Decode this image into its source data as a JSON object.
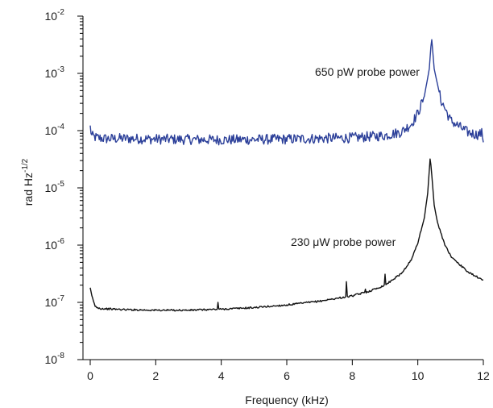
{
  "chart_data": {
    "type": "line",
    "xlabel": "Frequency (kHz)",
    "ylabel": {
      "base": "rad Hz",
      "exp": "-1/2"
    },
    "xlim": [
      0,
      12
    ],
    "ylim": [
      1e-08,
      0.01
    ],
    "yscale": "log",
    "grid": false,
    "x_ticks": [
      0,
      2,
      4,
      6,
      8,
      10,
      12
    ],
    "x_tick_labels": [
      "0",
      "2",
      "4",
      "6",
      "8",
      "10",
      "12"
    ],
    "y_ticks": [
      {
        "value": 1e-08,
        "base": "10",
        "exp": "-8"
      },
      {
        "value": 1e-07,
        "base": "10",
        "exp": "-7"
      },
      {
        "value": 1e-06,
        "base": "10",
        "exp": "-6"
      },
      {
        "value": 1e-05,
        "base": "10",
        "exp": "-5"
      },
      {
        "value": 0.0001,
        "base": "10",
        "exp": "-4"
      },
      {
        "value": 0.001,
        "base": "10",
        "exp": "-3"
      },
      {
        "value": 0.01,
        "base": "10",
        "exp": "-2"
      }
    ],
    "series": [
      {
        "name": "650 pW probe power",
        "color": "#2b3f99",
        "floor": 7.2e-05,
        "peak": {
          "x": 10.42,
          "y": 0.0042
        },
        "spikes": [],
        "x": [
          0.0,
          0.05,
          0.2,
          0.5,
          1.0,
          2.0,
          3.0,
          4.0,
          5.0,
          6.0,
          7.0,
          8.0,
          9.0,
          9.5,
          9.8,
          10.0,
          10.2,
          10.35,
          10.42,
          10.5,
          10.7,
          11.0,
          11.5,
          11.8,
          11.95,
          12.0
        ],
        "values": [
          0.000115,
          8e-05,
          7.5e-05,
          7.2e-05,
          7.3e-05,
          7.1e-05,
          7e-05,
          6.9e-05,
          7e-05,
          7.1e-05,
          7.3e-05,
          7.5e-05,
          8.2e-05,
          9.5e-05,
          0.00013,
          0.0002,
          0.0004,
          0.0012,
          0.0042,
          0.0012,
          0.00035,
          0.00015,
          9.5e-05,
          8.5e-05,
          9e-05,
          7e-05
        ]
      },
      {
        "name": "230 μW probe power",
        "color": "#111111",
        "floor": 7.2e-08,
        "peak": {
          "x": 10.38,
          "y": 3.5e-05
        },
        "spikes": [
          {
            "x": 3.9,
            "y": 1e-07
          },
          {
            "x": 7.82,
            "y": 2.3e-07
          },
          {
            "x": 8.4,
            "y": 1.7e-07
          },
          {
            "x": 9.0,
            "y": 3.1e-07
          },
          {
            "x": 11.8,
            "y": 2.9e-07
          }
        ],
        "x": [
          0.0,
          0.05,
          0.15,
          0.3,
          1.0,
          2.0,
          3.0,
          4.0,
          5.0,
          6.0,
          7.0,
          8.0,
          8.5,
          9.0,
          9.5,
          9.8,
          10.0,
          10.2,
          10.3,
          10.38,
          10.5,
          10.6,
          10.8,
          11.0,
          11.5,
          11.8,
          12.0
        ],
        "values": [
          1.75e-07,
          1.3e-07,
          8.5e-08,
          7.8e-08,
          7.5e-08,
          7.3e-08,
          7.3e-08,
          7.6e-08,
          8.1e-08,
          9e-08,
          1.05e-07,
          1.3e-07,
          1.55e-07,
          2e-07,
          3.2e-07,
          5.5e-07,
          1.1e-06,
          3e-06,
          8e-06,
          3.5e-05,
          5e-06,
          2.5e-06,
          1.1e-06,
          6.5e-07,
          3.5e-07,
          2.8e-07,
          2.4e-07
        ]
      }
    ],
    "annotations": [
      {
        "text": "650 pW probe power",
        "color": "#2b3f99",
        "series": 0
      },
      {
        "text": "230 μW probe power",
        "color": "#111111",
        "series": 1
      }
    ]
  }
}
